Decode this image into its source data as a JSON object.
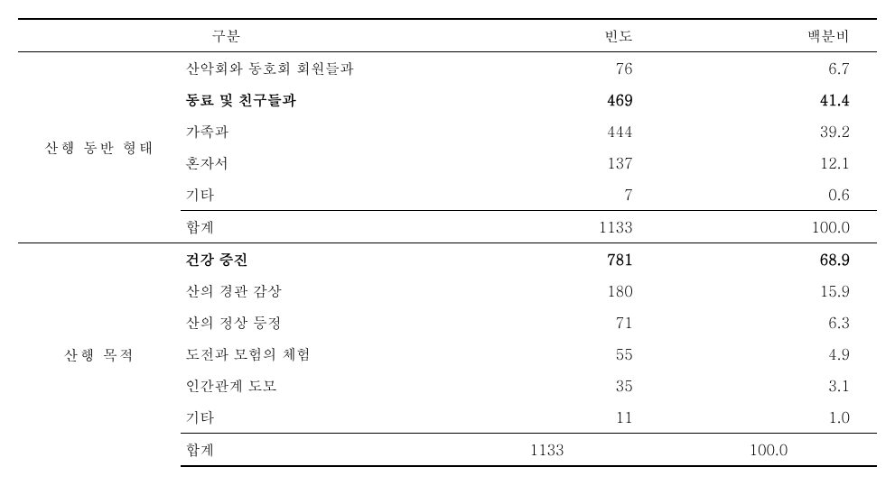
{
  "table": {
    "headers": {
      "category": "구분",
      "frequency": "빈도",
      "percentage": "백분비"
    },
    "sections": [
      {
        "name": "산행 동반 형태",
        "rows": [
          {
            "item": "산악회와 동호회 회원들과",
            "freq": "76",
            "pct": "6.7",
            "bold": false
          },
          {
            "item": "동료 및 친구들과",
            "freq": "469",
            "pct": "41.4",
            "bold": true
          },
          {
            "item": "가족과",
            "freq": "444",
            "pct": "39.2",
            "bold": false
          },
          {
            "item": "혼자서",
            "freq": "137",
            "pct": "12.1",
            "bold": false
          },
          {
            "item": "기타",
            "freq": "7",
            "pct": "0.6",
            "bold": false
          }
        ],
        "subtotal": {
          "item": "합계",
          "freq": "1133",
          "pct": "100.0"
        }
      },
      {
        "name": "산행 목적",
        "rows": [
          {
            "item": "건강 증진",
            "freq": "781",
            "pct": "68.9",
            "bold": true
          },
          {
            "item": "산의 경관 감상",
            "freq": "180",
            "pct": "15.9",
            "bold": false
          },
          {
            "item": "산의 정상 등정",
            "freq": "71",
            "pct": "6.3",
            "bold": false
          },
          {
            "item": "도전과 모험의 체험",
            "freq": "55",
            "pct": "4.9",
            "bold": false
          },
          {
            "item": "인간관계 도모",
            "freq": "35",
            "pct": "3.1",
            "bold": false
          },
          {
            "item": "기타",
            "freq": "11",
            "pct": "1.0",
            "bold": false
          }
        ],
        "subtotal": {
          "item": "합계",
          "freq": "1133",
          "pct": "100.0",
          "centered": true
        }
      }
    ]
  },
  "style": {
    "font_family": "Batang",
    "font_size": 16,
    "border_color": "#000000",
    "background_color": "#ffffff",
    "text_color": "#000000"
  }
}
